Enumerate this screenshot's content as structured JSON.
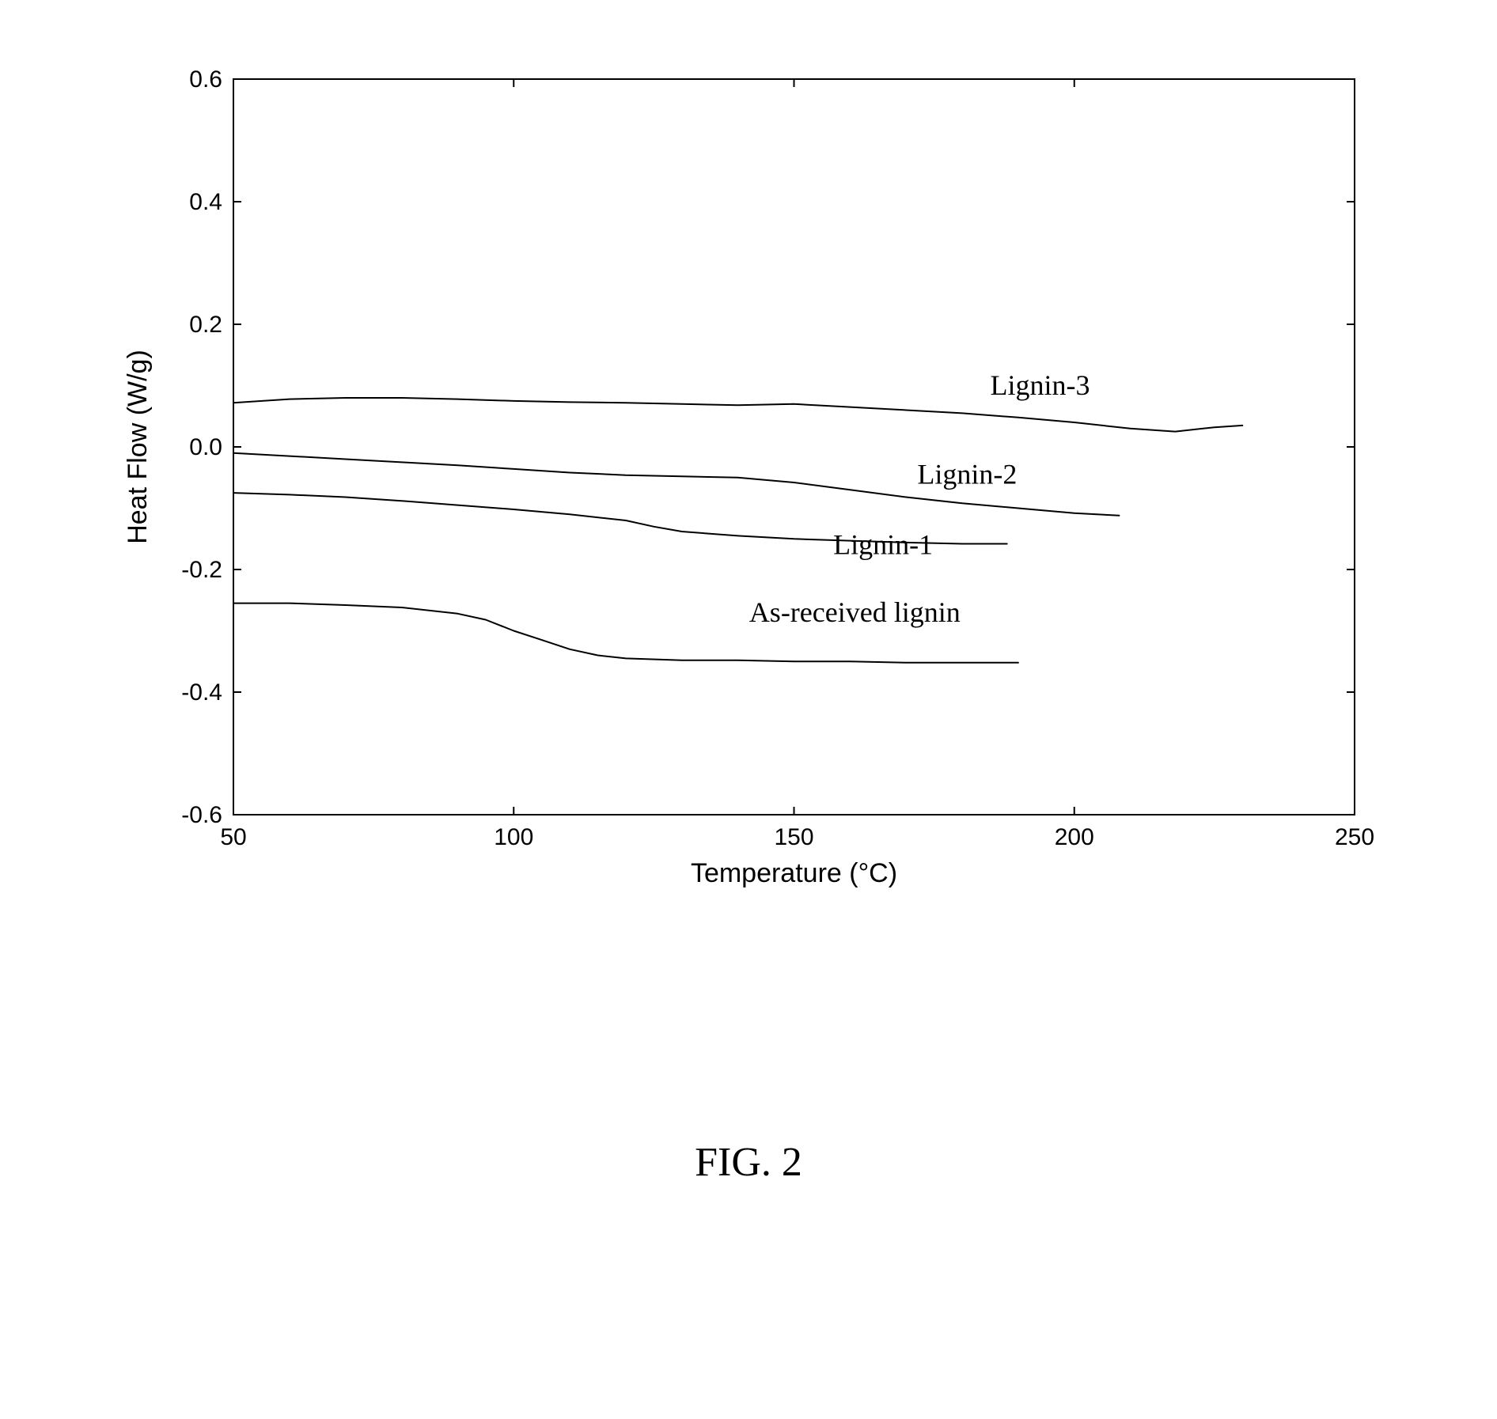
{
  "figure": {
    "caption": "FIG. 2",
    "caption_fontsize": 52,
    "caption_color": "#000000"
  },
  "chart": {
    "type": "line",
    "background_color": "#ffffff",
    "axis_color": "#000000",
    "tick_color": "#000000",
    "tick_length": 10,
    "axis_line_width": 2,
    "series_line_width": 2,
    "series_color": "#000000",
    "x": {
      "label": "Temperature (°C)",
      "label_fontsize": 34,
      "label_color": "#000000",
      "min": 50,
      "max": 250,
      "ticks": [
        50,
        100,
        150,
        200,
        250
      ],
      "tick_labels": [
        "50",
        "100",
        "150",
        "200",
        "250"
      ],
      "tick_fontsize": 30
    },
    "y": {
      "label": "Heat Flow (W/g)",
      "label_fontsize": 34,
      "label_color": "#000000",
      "min": -0.6,
      "max": 0.6,
      "ticks": [
        -0.6,
        -0.4,
        -0.2,
        0.0,
        0.2,
        0.4,
        0.6
      ],
      "tick_labels": [
        "-0.6",
        "-0.4",
        "-0.2",
        "0.0",
        "0.2",
        "0.4",
        "0.6"
      ],
      "tick_fontsize": 30
    },
    "series": [
      {
        "name": "As-received lignin",
        "label": "As-received lignin",
        "label_fontsize": 36,
        "label_pos": {
          "x": 142,
          "y": -0.285
        },
        "points": [
          {
            "x": 50,
            "y": -0.255
          },
          {
            "x": 60,
            "y": -0.255
          },
          {
            "x": 70,
            "y": -0.258
          },
          {
            "x": 80,
            "y": -0.262
          },
          {
            "x": 90,
            "y": -0.272
          },
          {
            "x": 95,
            "y": -0.282
          },
          {
            "x": 100,
            "y": -0.3
          },
          {
            "x": 105,
            "y": -0.315
          },
          {
            "x": 110,
            "y": -0.33
          },
          {
            "x": 115,
            "y": -0.34
          },
          {
            "x": 120,
            "y": -0.345
          },
          {
            "x": 130,
            "y": -0.348
          },
          {
            "x": 140,
            "y": -0.348
          },
          {
            "x": 150,
            "y": -0.35
          },
          {
            "x": 160,
            "y": -0.35
          },
          {
            "x": 170,
            "y": -0.352
          },
          {
            "x": 180,
            "y": -0.352
          },
          {
            "x": 190,
            "y": -0.352
          }
        ]
      },
      {
        "name": "Lignin-1",
        "label": "Lignin-1",
        "label_fontsize": 36,
        "label_pos": {
          "x": 157,
          "y": -0.175
        },
        "points": [
          {
            "x": 50,
            "y": -0.075
          },
          {
            "x": 60,
            "y": -0.078
          },
          {
            "x": 70,
            "y": -0.082
          },
          {
            "x": 80,
            "y": -0.088
          },
          {
            "x": 90,
            "y": -0.095
          },
          {
            "x": 100,
            "y": -0.102
          },
          {
            "x": 110,
            "y": -0.11
          },
          {
            "x": 120,
            "y": -0.12
          },
          {
            "x": 125,
            "y": -0.13
          },
          {
            "x": 130,
            "y": -0.138
          },
          {
            "x": 140,
            "y": -0.145
          },
          {
            "x": 150,
            "y": -0.15
          },
          {
            "x": 160,
            "y": -0.153
          },
          {
            "x": 170,
            "y": -0.156
          },
          {
            "x": 180,
            "y": -0.158
          },
          {
            "x": 188,
            "y": -0.158
          }
        ]
      },
      {
        "name": "Lignin-2",
        "label": "Lignin-2",
        "label_fontsize": 36,
        "label_pos": {
          "x": 172,
          "y": -0.06
        },
        "points": [
          {
            "x": 50,
            "y": -0.01
          },
          {
            "x": 60,
            "y": -0.015
          },
          {
            "x": 70,
            "y": -0.02
          },
          {
            "x": 80,
            "y": -0.025
          },
          {
            "x": 90,
            "y": -0.03
          },
          {
            "x": 100,
            "y": -0.036
          },
          {
            "x": 110,
            "y": -0.042
          },
          {
            "x": 120,
            "y": -0.046
          },
          {
            "x": 130,
            "y": -0.048
          },
          {
            "x": 140,
            "y": -0.05
          },
          {
            "x": 150,
            "y": -0.058
          },
          {
            "x": 160,
            "y": -0.07
          },
          {
            "x": 170,
            "y": -0.082
          },
          {
            "x": 180,
            "y": -0.092
          },
          {
            "x": 190,
            "y": -0.1
          },
          {
            "x": 200,
            "y": -0.108
          },
          {
            "x": 208,
            "y": -0.112
          }
        ]
      },
      {
        "name": "Lignin-3",
        "label": "Lignin-3",
        "label_fontsize": 36,
        "label_pos": {
          "x": 185,
          "y": 0.085
        },
        "points": [
          {
            "x": 50,
            "y": 0.072
          },
          {
            "x": 60,
            "y": 0.078
          },
          {
            "x": 70,
            "y": 0.08
          },
          {
            "x": 80,
            "y": 0.08
          },
          {
            "x": 90,
            "y": 0.078
          },
          {
            "x": 100,
            "y": 0.075
          },
          {
            "x": 110,
            "y": 0.073
          },
          {
            "x": 120,
            "y": 0.072
          },
          {
            "x": 130,
            "y": 0.07
          },
          {
            "x": 140,
            "y": 0.068
          },
          {
            "x": 150,
            "y": 0.07
          },
          {
            "x": 160,
            "y": 0.065
          },
          {
            "x": 170,
            "y": 0.06
          },
          {
            "x": 180,
            "y": 0.055
          },
          {
            "x": 190,
            "y": 0.048
          },
          {
            "x": 200,
            "y": 0.04
          },
          {
            "x": 210,
            "y": 0.03
          },
          {
            "x": 218,
            "y": 0.025
          },
          {
            "x": 225,
            "y": 0.032
          },
          {
            "x": 230,
            "y": 0.035
          }
        ]
      }
    ]
  }
}
